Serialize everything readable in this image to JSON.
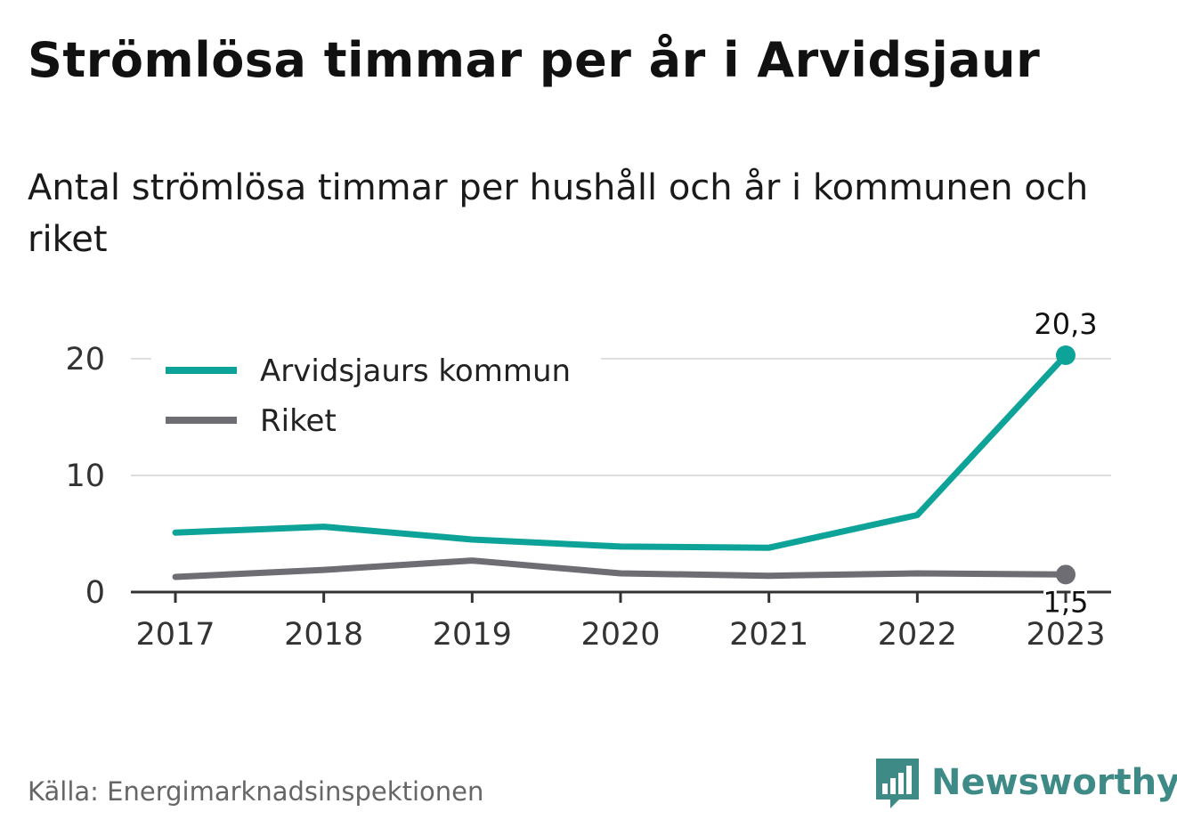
{
  "title": "Strömlösa timmar per år i Arvidsjaur",
  "subtitle": "Antal strömlösa timmar per hushåll och år i kommunen och riket",
  "source": "Källa: Energimarknadsinspektionen",
  "brand": {
    "name": "Newsworthy",
    "logo_icon": "bar-chart-speech-bubble-icon",
    "color": "#3d8a86"
  },
  "chart_data": {
    "type": "line",
    "x": [
      "2017",
      "2018",
      "2019",
      "2020",
      "2021",
      "2022",
      "2023"
    ],
    "ylim": [
      0,
      20.3
    ],
    "yticks": [
      "0",
      "10",
      "20"
    ],
    "grid": true,
    "legend_position": "top-left",
    "series": [
      {
        "name": "Arvidsjaurs kommun",
        "color": "#0ea399",
        "values": [
          5.1,
          5.6,
          4.5,
          3.9,
          3.8,
          6.6,
          20.3
        ],
        "end_label": "20,3"
      },
      {
        "name": "Riket",
        "color": "#6e6d74",
        "values": [
          1.3,
          1.9,
          2.7,
          1.6,
          1.4,
          1.6,
          1.5
        ],
        "end_label": "1,5"
      }
    ]
  }
}
